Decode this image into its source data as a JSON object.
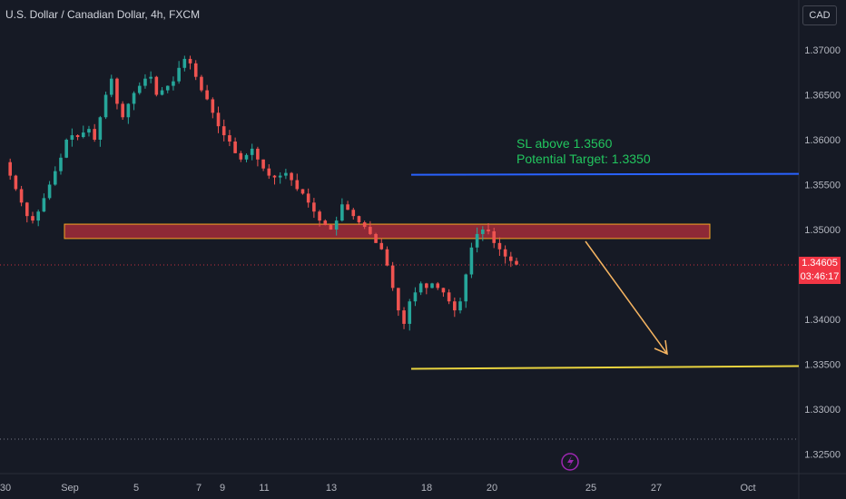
{
  "header": {
    "title": "U.S. Dollar / Canadian Dollar, 4h, FXCM",
    "currency_button": "CAD"
  },
  "colors": {
    "background": "#161a25",
    "up": "#26a69a",
    "down": "#ef5350",
    "zone": "#f23645",
    "resistance": "#2962ff",
    "target": "#e8d33f",
    "arrow": "#f5b461"
  },
  "annotations": {
    "line1": "SL above 1.3560",
    "line2": "Potential Target: 1.3350"
  },
  "current_price": {
    "value": "1.34605",
    "countdown": "03:46:17"
  },
  "chart_data": {
    "type": "candlestick",
    "title": "U.S. Dollar / Canadian Dollar, 4h, FXCM",
    "y_ticks": [
      "1.37000",
      "1.36500",
      "1.36000",
      "1.35500",
      "1.35000",
      "1.34500",
      "1.34000",
      "1.33500",
      "1.33000",
      "1.32500"
    ],
    "x_ticks": [
      "30",
      "Sep",
      "5",
      "7",
      "9",
      "11",
      "13",
      "18",
      "20",
      "25",
      "27",
      "Oct"
    ],
    "ylim": [
      1.3232,
      1.3742
    ],
    "current_price": 1.34605,
    "resistance_level": 1.356,
    "target_level": 1.335,
    "zone": [
      1.349,
      1.3506
    ],
    "trend": [
      1.3575,
      1.356,
      1.3545,
      1.353,
      1.3515,
      1.351,
      1.352,
      1.3535,
      1.355,
      1.3565,
      1.358,
      1.36,
      1.3605,
      1.3603,
      1.3608,
      1.3612,
      1.36,
      1.3625,
      1.365,
      1.3668,
      1.364,
      1.3625,
      1.364,
      1.3652,
      1.366,
      1.3668,
      1.367,
      1.365,
      1.3655,
      1.366,
      1.3665,
      1.368,
      1.369,
      1.3685,
      1.367,
      1.3655,
      1.3645,
      1.363,
      1.3615,
      1.3605,
      1.3598,
      1.3585,
      1.3578,
      1.3583,
      1.359,
      1.3578,
      1.3568,
      1.356,
      1.3558,
      1.356,
      1.3563,
      1.3555,
      1.3545,
      1.354,
      1.353,
      1.352,
      1.351,
      1.3505,
      1.35,
      1.351,
      1.3528,
      1.3522,
      1.3515,
      1.3508,
      1.3503,
      1.3495,
      1.3485,
      1.3478,
      1.346,
      1.3435,
      1.341,
      1.3395,
      1.342,
      1.343,
      1.344,
      1.3435,
      1.344,
      1.3435,
      1.343,
      1.342,
      1.341,
      1.342,
      1.345,
      1.348,
      1.3495,
      1.35,
      1.3498,
      1.3485,
      1.3478,
      1.347,
      1.3465,
      1.3461
    ]
  }
}
